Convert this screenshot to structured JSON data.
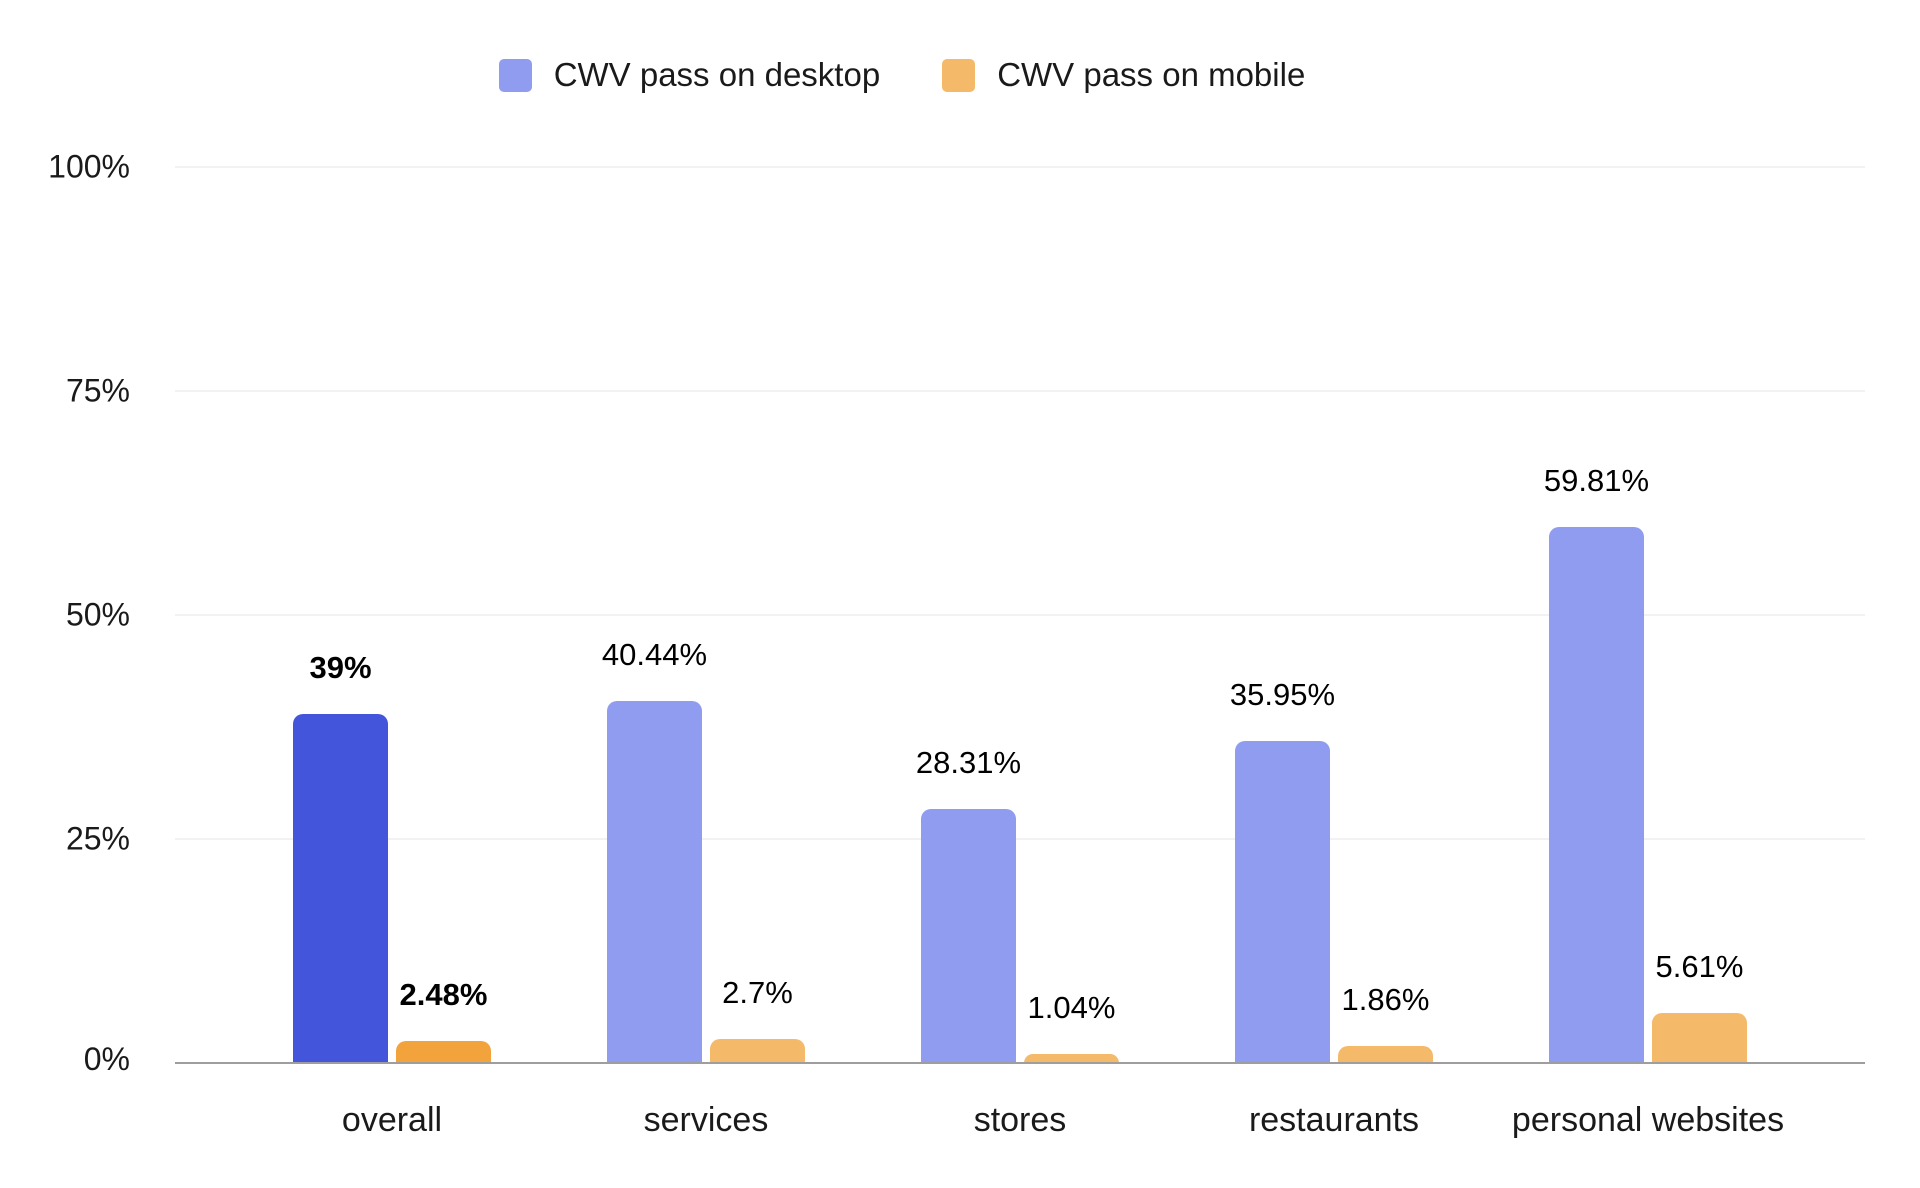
{
  "legend": {
    "items": [
      {
        "label": "CWV pass on desktop",
        "color": "#8f9cf0"
      },
      {
        "label": "CWV pass on mobile",
        "color": "#f4ba6a"
      }
    ]
  },
  "chart_data": {
    "type": "bar",
    "title": "",
    "xlabel": "",
    "ylabel": "",
    "categories": [
      "overall",
      "services",
      "stores",
      "restaurants",
      "personal websites"
    ],
    "series": [
      {
        "name": "CWV pass on desktop",
        "values": [
          39,
          40.44,
          28.31,
          35.95,
          59.81
        ],
        "value_labels": [
          "39%",
          "40.44%",
          "28.31%",
          "35.95%",
          "59.81%"
        ],
        "color": "#8f9cf0",
        "highlight_color": "#4355db"
      },
      {
        "name": "CWV pass on mobile",
        "values": [
          2.48,
          2.7,
          1.04,
          1.86,
          5.61
        ],
        "value_labels": [
          "2.48%",
          "2.7%",
          "1.04%",
          "1.86%",
          "5.61%"
        ],
        "color": "#f4ba6a",
        "highlight_color": "#f2a33c"
      }
    ],
    "highlighted_category": "overall",
    "ylim": [
      0,
      100
    ],
    "yticks": [
      {
        "value": 0,
        "label": "0%"
      },
      {
        "value": 25,
        "label": "25%"
      },
      {
        "value": 50,
        "label": "50%"
      },
      {
        "value": 75,
        "label": "75%"
      },
      {
        "value": 100,
        "label": "100%"
      }
    ],
    "grid": true,
    "legend_position": "top"
  },
  "style": {
    "gridline_color": "#e6e6e6",
    "axis_line_color": "#9e9e9e",
    "text_color": "#1a1a1a",
    "value_label_color": "#000000",
    "background": "#ffffff"
  }
}
